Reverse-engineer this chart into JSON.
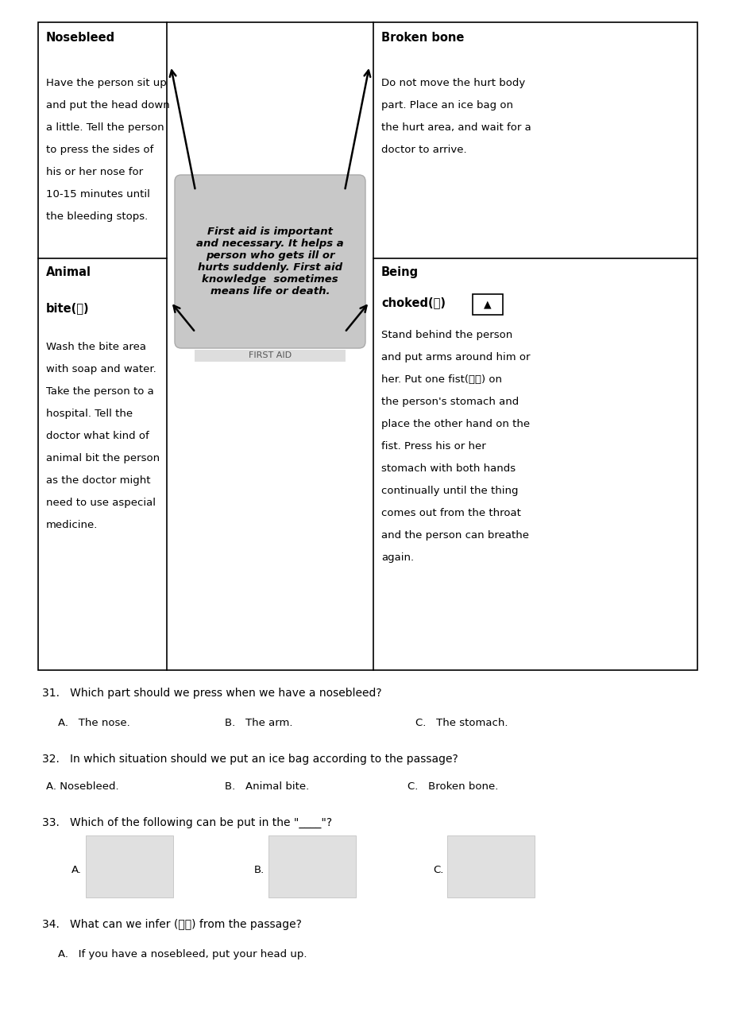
{
  "page_bg": "#ffffff",
  "TL": 48,
  "TR": 878,
  "TT": 28,
  "TB": 843,
  "C1": 210,
  "C2": 470,
  "R1B": 325,
  "nosebleed_title": "Nosebleed",
  "nosebleed_lines": [
    "Have the person sit up",
    "and put the head down",
    "a little. Tell the person",
    "to press the sides of",
    "his or her nose for",
    "10-15 minutes until",
    "the bleeding stops."
  ],
  "animal_line1": "Animal",
  "animal_line2": "bite(咋)",
  "animal_lines": [
    "Wash the bite area",
    "with soap and water.",
    "Take the person to a",
    "hospital. Tell the",
    "doctor what kind of",
    "animal bit the person",
    "as the doctor might",
    "need to use aspecial",
    "medicine."
  ],
  "center_text": "First aid is important\nand necessary. It helps a\nperson who gets ill or\nhurts suddenly. First aid\nknowledge  sometimes\nmeans life or death.",
  "broken_bone_title": "Broken bone",
  "broken_bone_lines": [
    "Do not move the hurt body",
    "part. Place an ice bag on",
    "the hurt area, and wait for a",
    "doctor to arrive."
  ],
  "being_line": "Being",
  "choked_line": "choked(嚍)",
  "choked_lines": [
    "Stand behind the person",
    "and put arms around him or",
    "her. Put one fist(参头) on",
    "the person's stomach and",
    "place the other hand on the",
    "fist. Press his or her",
    "stomach with both hands",
    "continually until the thing",
    "comes out from the throat",
    "and the person can breathe",
    "again."
  ],
  "q31": "31.   Which part should we press when we have a nosebleed?",
  "q31_a": "A.   The nose.",
  "q31_b": "B.   The arm.",
  "q31_c": "C.   The stomach.",
  "q32": "32.   In which situation should we put an ice bag according to the passage?",
  "q32_a": "A. Nosebleed.",
  "q32_b": "B.   Animal bite.",
  "q32_c": "C.   Broken bone.",
  "q33": "33.   Which of the following can be put in the \"____\"?",
  "q33_a": "A.",
  "q33_b": "B.",
  "q33_c": "C.",
  "q34": "34.   What can we infer (推断) from the passage?",
  "q34_a": "A.   If you have a nosebleed, put your head up."
}
